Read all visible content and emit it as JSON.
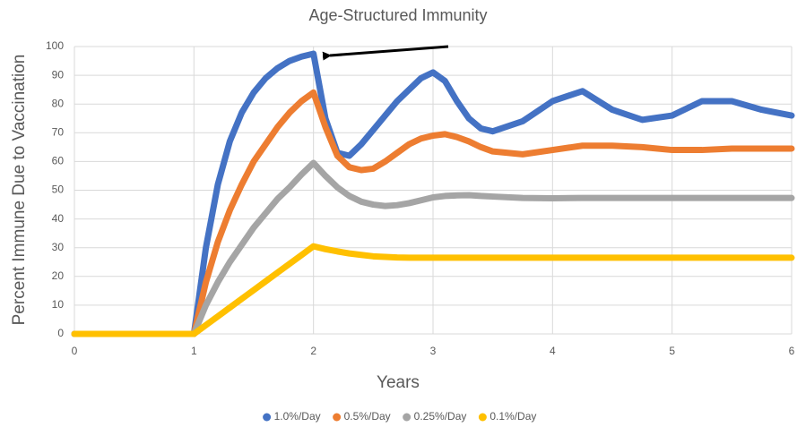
{
  "chart_data": {
    "type": "line",
    "title": "Age-Structured Immunity",
    "x_label": "Years",
    "y_label": "Percent Immune Due to Vaccination",
    "x": [
      0,
      0.5,
      1.0,
      1.1,
      1.2,
      1.3,
      1.4,
      1.5,
      1.6,
      1.7,
      1.8,
      1.9,
      2.0,
      2.1,
      2.2,
      2.3,
      2.4,
      2.5,
      2.6,
      2.7,
      2.8,
      2.9,
      3.0,
      3.1,
      3.2,
      3.3,
      3.4,
      3.5,
      3.75,
      4,
      4.25,
      4.5,
      4.75,
      5,
      5.25,
      5.5,
      5.75,
      6
    ],
    "series": [
      {
        "name": "1.0%/Day",
        "color": "#4472c4",
        "values": [
          0,
          0,
          0,
          30,
          52,
          67,
          77,
          84,
          89,
          92.5,
          95,
          96.5,
          97.5,
          75,
          63,
          62,
          66,
          71,
          76,
          81,
          85,
          89,
          91,
          88,
          81,
          75,
          71.5,
          70.5,
          74,
          81,
          84.5,
          78,
          74.5,
          76,
          81,
          81,
          78,
          76
        ]
      },
      {
        "name": "0.5%/Day",
        "color": "#ed7d31",
        "values": [
          0,
          0,
          0,
          18,
          32,
          43,
          52,
          60,
          66,
          72,
          77,
          81,
          84,
          72,
          62,
          58,
          57,
          57.5,
          60,
          63,
          66,
          68,
          69,
          69.5,
          68.5,
          67,
          65,
          63.5,
          62.5,
          64,
          65.5,
          65.5,
          65,
          64,
          64,
          64.5,
          64.5,
          64.5
        ]
      },
      {
        "name": "0.25%/Day",
        "color": "#a5a5a5",
        "values": [
          0,
          0,
          0,
          10,
          18,
          25,
          31,
          37,
          42,
          47,
          51,
          55.5,
          59.5,
          55,
          51,
          48,
          46,
          45,
          44.5,
          44.8,
          45.5,
          46.5,
          47.5,
          48,
          48.2,
          48.3,
          48,
          47.8,
          47.3,
          47.2,
          47.3,
          47.3,
          47.3,
          47.3,
          47.3,
          47.3,
          47.3,
          47.3
        ]
      },
      {
        "name": "0.1%/Day",
        "color": "#ffc000",
        "values": [
          0,
          0,
          0,
          3.05,
          6.1,
          9.15,
          12.2,
          15.25,
          18.3,
          21.35,
          24.4,
          27.45,
          30.5,
          29.5,
          28.7,
          28,
          27.5,
          27,
          26.8,
          26.6,
          26.5,
          26.5,
          26.5,
          26.5,
          26.5,
          26.5,
          26.5,
          26.5,
          26.5,
          26.5,
          26.5,
          26.5,
          26.5,
          26.5,
          26.5,
          26.5,
          26.5,
          26.5
        ]
      }
    ],
    "xlim": [
      0,
      6
    ],
    "xticks": [
      0,
      1,
      2,
      3,
      4,
      5,
      6
    ],
    "ylim": [
      0,
      100
    ],
    "yticks": [
      0,
      10,
      20,
      30,
      40,
      50,
      60,
      70,
      80,
      90,
      100
    ],
    "grid": true,
    "legend": "bottom"
  }
}
